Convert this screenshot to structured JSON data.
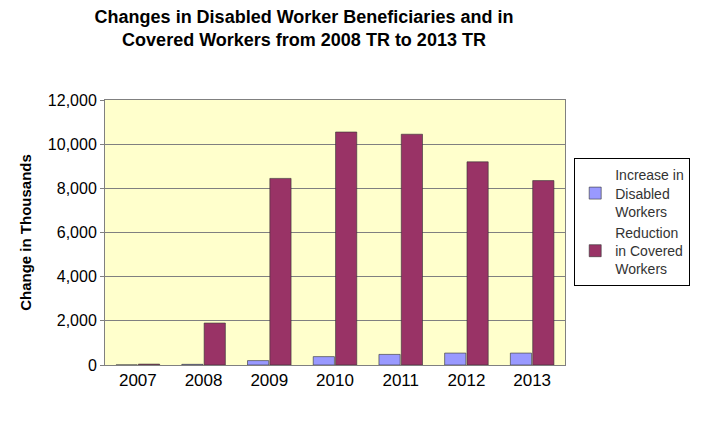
{
  "chart_data": {
    "type": "bar",
    "title": "Changes in Disabled Worker Beneficiaries and in Covered Workers from 2008 TR to 2013 TR",
    "ylabel": "Change in Thousands",
    "categories": [
      "2007",
      "2008",
      "2009",
      "2010",
      "2011",
      "2012",
      "2013"
    ],
    "series": [
      {
        "name": "Increase in Disabled Workers",
        "color": "#9999ff",
        "values": [
          5,
          30,
          200,
          380,
          480,
          540,
          540
        ]
      },
      {
        "name": "Reduction in Covered Workers",
        "color": "#993366",
        "values": [
          40,
          1900,
          8450,
          10550,
          10450,
          9200,
          8350
        ]
      }
    ],
    "ylim": [
      0,
      12000
    ],
    "yticks": [
      0,
      {
        "value": 2000,
        "label": "2,000"
      },
      {
        "value": 4000,
        "label": "4,000"
      },
      {
        "value": 6000,
        "label": "6,000"
      },
      {
        "value": 8000,
        "label": "8,000"
      },
      {
        "value": 10000,
        "label": "10,000"
      },
      {
        "value": 12000,
        "label": "12,000"
      }
    ],
    "grid": true,
    "legend": "right"
  }
}
